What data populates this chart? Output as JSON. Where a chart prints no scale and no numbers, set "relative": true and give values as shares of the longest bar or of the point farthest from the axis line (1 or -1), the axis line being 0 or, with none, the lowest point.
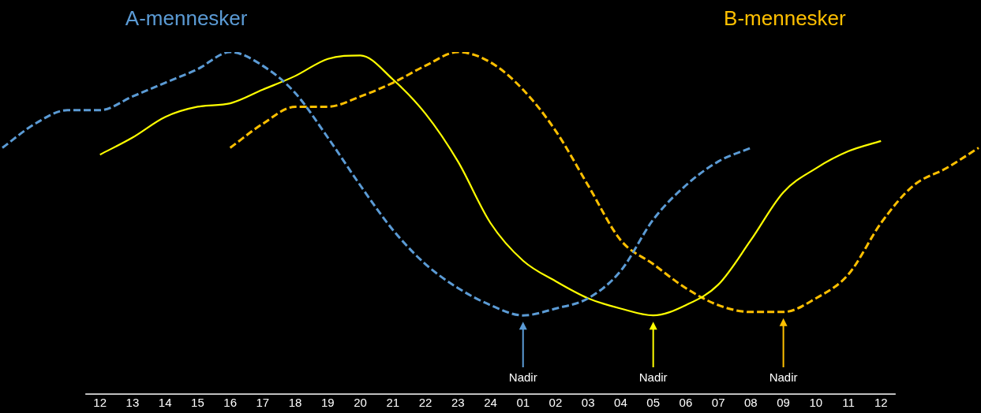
{
  "chart_data": {
    "type": "line",
    "relative": true,
    "grid": false,
    "marker": "none",
    "legend": false,
    "categories": [
      null,
      null,
      null,
      "12",
      "13",
      "14",
      "15",
      "16",
      "17",
      "18",
      "19",
      "20",
      "21",
      "22",
      "23",
      "24",
      "01",
      "02",
      "03",
      "04",
      "05",
      "06",
      "07",
      "08",
      "09",
      "10",
      "11",
      "12",
      null,
      null,
      null
    ],
    "series": [
      {
        "name": "A-mennesker",
        "color": "#5b9bd5",
        "line_style": "dashed",
        "values": [
          0.72,
          0.79,
          0.83,
          0.83,
          0.87,
          0.91,
          0.95,
          1.0,
          0.96,
          0.88,
          0.75,
          0.61,
          0.48,
          0.38,
          0.31,
          0.26,
          0.23,
          0.25,
          0.28,
          0.36,
          0.51,
          0.61,
          0.68,
          0.72,
          null,
          null,
          null,
          null,
          null,
          null,
          null
        ]
      },
      {
        "color": "#ffff00",
        "line_style": "solid",
        "values": [
          null,
          null,
          null,
          0.7,
          0.75,
          0.81,
          0.84,
          0.85,
          0.89,
          0.93,
          0.98,
          0.99,
          0.92,
          0.82,
          0.68,
          0.5,
          0.39,
          0.33,
          0.28,
          0.25,
          0.23,
          0.26,
          0.32,
          0.45,
          0.59,
          0.66,
          0.71,
          0.74,
          null,
          null,
          null
        ]
      },
      {
        "name": "B-mennesker",
        "color": "#ffc000",
        "line_style": "dashed",
        "values": [
          null,
          null,
          null,
          null,
          null,
          null,
          null,
          0.72,
          0.79,
          0.84,
          0.84,
          0.87,
          0.91,
          0.96,
          1.0,
          0.97,
          0.89,
          0.77,
          0.61,
          0.45,
          0.38,
          0.31,
          0.26,
          0.24,
          0.24,
          0.28,
          0.35,
          0.5,
          0.61,
          0.66,
          0.72
        ]
      }
    ],
    "annotations": [
      "Nadir",
      "Nadir",
      "Nadir"
    ]
  }
}
